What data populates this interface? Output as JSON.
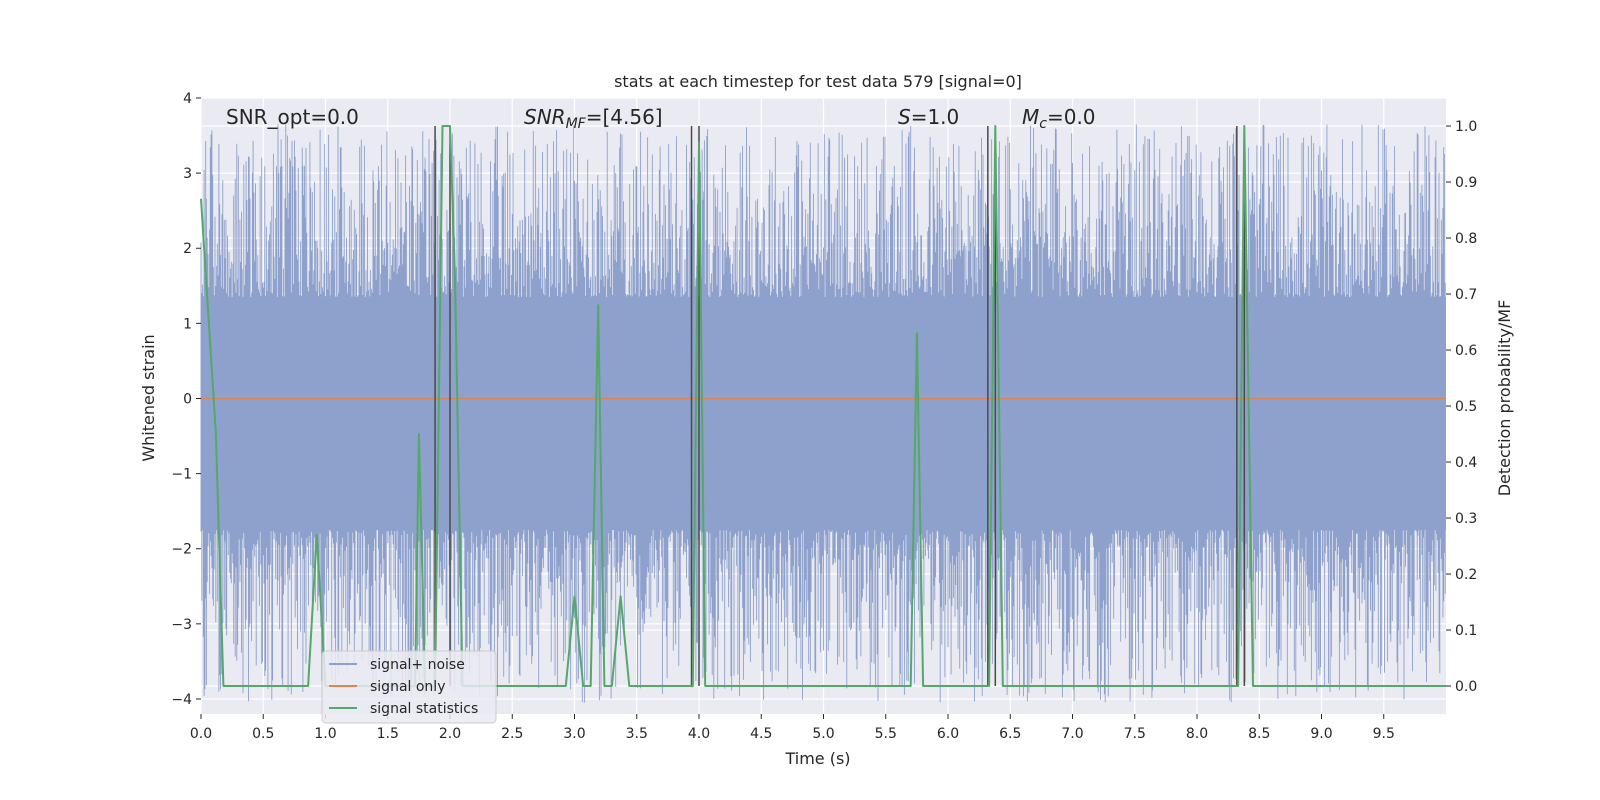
{
  "chart_data": {
    "type": "line",
    "title": "stats at each timestep for test data 579 [signal=0]",
    "xlabel": "Time (s)",
    "ylabel_left": "Whitened strain",
    "ylabel_right": "Detection probability/MF",
    "xlim": [
      0,
      10
    ],
    "ylim_left": [
      -4.2,
      4.0
    ],
    "ylim_right": [
      -0.05,
      1.05
    ],
    "x_ticks": [
      "0.0",
      "0.5",
      "1.0",
      "1.5",
      "2.0",
      "2.5",
      "3.0",
      "3.5",
      "4.0",
      "4.5",
      "5.0",
      "5.5",
      "6.0",
      "6.5",
      "7.0",
      "7.5",
      "8.0",
      "8.5",
      "9.0",
      "9.5"
    ],
    "y_ticks_left": [
      "4",
      "3",
      "2",
      "1",
      "0",
      "−1",
      "−2",
      "−3",
      "−4"
    ],
    "y_ticks_right": [
      "1.0",
      "0.9",
      "0.8",
      "0.7",
      "0.6",
      "0.5",
      "0.4",
      "0.3",
      "0.2",
      "0.1",
      "0.0"
    ],
    "grid": true,
    "legend_position": "lower-left",
    "annotations": {
      "snr_opt": "SNR_opt=0.0",
      "snr_mf_sym": "SNR",
      "snr_mf_sub": "MF",
      "snr_mf_val": "=[4.56]",
      "s_sym": "S",
      "s_val": "=1.0",
      "mc_sym": "M",
      "mc_sub": "c",
      "mc_val": "=0.0"
    },
    "series": [
      {
        "name": "signal+ noise",
        "color": "#8ea1cc",
        "axis": "left",
        "description_band": {
          "core": [
            -1.75,
            1.35
          ],
          "peak_max": 3.65,
          "peak_min": -4.05
        }
      },
      {
        "name": "signal only",
        "color": "#dd8452",
        "axis": "left",
        "x": [
          0,
          10
        ],
        "y": [
          0,
          0
        ]
      },
      {
        "name": "signal statistics",
        "color": "#55a868",
        "axis": "right",
        "x": [
          0.0,
          0.12,
          0.18,
          0.86,
          0.93,
          1.0,
          1.72,
          1.75,
          1.8,
          1.88,
          1.94,
          2.0,
          2.04,
          2.1,
          2.14,
          2.93,
          3.0,
          3.07,
          3.13,
          3.19,
          3.24,
          3.3,
          3.37,
          3.44,
          3.95,
          4.0,
          4.05,
          4.12,
          5.7,
          5.75,
          5.8,
          6.33,
          6.38,
          6.44,
          6.5,
          7.4,
          7.45,
          8.33,
          8.38,
          8.45,
          10.0
        ],
        "y": [
          0.87,
          0.45,
          0.0,
          0.0,
          0.27,
          0.0,
          0.0,
          0.45,
          0.0,
          0.0,
          1.0,
          1.0,
          0.73,
          0.0,
          0.0,
          0.0,
          0.16,
          0.0,
          0.0,
          0.68,
          0.0,
          0.0,
          0.16,
          0.0,
          0.0,
          0.97,
          0.0,
          0.0,
          0.0,
          0.63,
          0.0,
          0.0,
          1.0,
          0.0,
          0.0,
          0.0,
          0.0,
          0.0,
          1.0,
          0.0,
          0.0
        ]
      }
    ],
    "vertical_markers": {
      "color": "#4a4a4a",
      "x": [
        1.88,
        2.0,
        3.94,
        4.0,
        6.32,
        6.38,
        8.32,
        8.38
      ],
      "y_range_right": [
        0.0,
        1.0
      ]
    }
  },
  "legend": {
    "items": [
      {
        "label": "signal+ noise",
        "color": "#8ea1cc"
      },
      {
        "label": "signal only",
        "color": "#dd8452"
      },
      {
        "label": "signal statistics",
        "color": "#55a868"
      }
    ]
  }
}
